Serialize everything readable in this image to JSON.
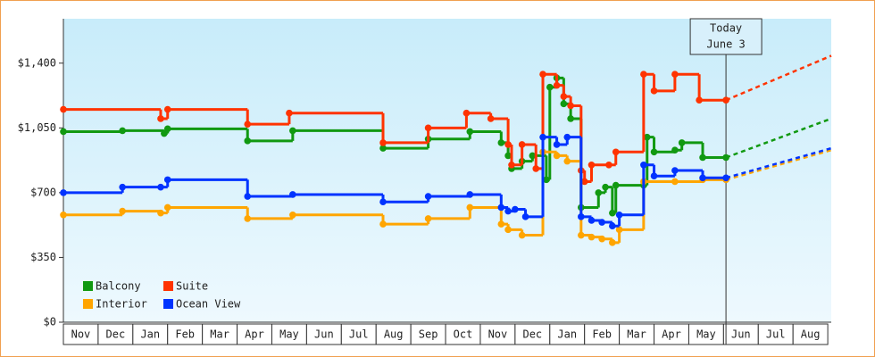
{
  "chart_data": {
    "type": "step-line",
    "months": [
      "Nov",
      "Dec",
      "Jan",
      "Feb",
      "Mar",
      "Apr",
      "May",
      "Jun",
      "Jul",
      "Aug",
      "Sep",
      "Oct",
      "Nov",
      "Dec",
      "Jan",
      "Feb",
      "Mar",
      "Apr",
      "May",
      "Jun",
      "Jul",
      "Aug"
    ],
    "xlim": [
      0,
      22.1
    ],
    "ylim": [
      0,
      1640
    ],
    "yticks": [
      {
        "value": 0,
        "label": "$0"
      },
      {
        "value": 350,
        "label": "$350"
      },
      {
        "value": 700,
        "label": "$700"
      },
      {
        "value": 1050,
        "label": "$1,050"
      },
      {
        "value": 1400,
        "label": "$1,400"
      }
    ],
    "today": {
      "x": 19.07,
      "label": "Today",
      "date": "June 3"
    },
    "forecast_x": [
      19.07,
      22.1
    ],
    "legend": "lower left",
    "series": [
      {
        "name": "Balcony",
        "color": "#119911",
        "x": [
          0,
          1.7,
          2.9,
          3.0,
          5.3,
          6.6,
          9.2,
          10.5,
          11.7,
          12.6,
          12.8,
          12.9,
          13.2,
          13.5,
          13.9,
          14.0,
          14.2,
          14.4,
          14.6,
          14.9,
          15.4,
          15.6,
          15.8,
          15.9,
          16.7,
          16.8,
          17.0,
          17.6,
          17.8,
          18.4,
          19.07
        ],
        "values": [
          1030,
          1035,
          1020,
          1045,
          980,
          1035,
          940,
          990,
          1030,
          970,
          900,
          830,
          870,
          900,
          770,
          1270,
          1320,
          1180,
          1100,
          620,
          700,
          730,
          590,
          740,
          740,
          1000,
          920,
          930,
          970,
          890,
          890
        ],
        "forecast": [
          890,
          1100
        ]
      },
      {
        "name": "Suite",
        "color": "#ff3300",
        "x": [
          0,
          2.8,
          3.0,
          5.3,
          6.5,
          9.2,
          10.5,
          11.6,
          12.3,
          12.8,
          12.9,
          13.2,
          13.6,
          13.8,
          14.2,
          14.4,
          14.6,
          14.9,
          15.0,
          15.2,
          15.7,
          15.9,
          16.7,
          17.0,
          17.6,
          18.3,
          19.07
        ],
        "values": [
          1150,
          1100,
          1150,
          1070,
          1130,
          970,
          1050,
          1130,
          1100,
          960,
          850,
          960,
          830,
          1340,
          1280,
          1220,
          1170,
          820,
          760,
          850,
          850,
          920,
          1340,
          1250,
          1340,
          1200,
          1200
        ],
        "forecast": [
          1200,
          1440
        ]
      },
      {
        "name": "Interior",
        "color": "#ffa500",
        "x": [
          0,
          1.7,
          2.8,
          3.0,
          5.3,
          6.6,
          9.2,
          10.5,
          11.7,
          12.6,
          12.8,
          13.2,
          13.8,
          14.2,
          14.5,
          14.9,
          15.2,
          15.5,
          15.8,
          16.0,
          16.7,
          17.6,
          18.4,
          19.07
        ],
        "values": [
          580,
          600,
          590,
          620,
          560,
          580,
          530,
          560,
          620,
          530,
          500,
          470,
          920,
          900,
          870,
          470,
          460,
          450,
          430,
          500,
          760,
          760,
          770,
          770
        ],
        "forecast": [
          770,
          930
        ]
      },
      {
        "name": "Ocean View",
        "color": "#0033ff",
        "x": [
          0,
          1.7,
          2.8,
          3.0,
          5.3,
          6.6,
          9.2,
          10.5,
          11.7,
          12.6,
          12.8,
          13.0,
          13.3,
          13.8,
          14.2,
          14.5,
          14.9,
          15.2,
          15.5,
          15.8,
          16.0,
          16.7,
          17.0,
          17.6,
          18.4,
          19.07
        ],
        "values": [
          700,
          730,
          730,
          770,
          680,
          690,
          650,
          680,
          690,
          620,
          600,
          610,
          570,
          1000,
          960,
          1000,
          570,
          550,
          540,
          520,
          580,
          850,
          790,
          820,
          780,
          780
        ],
        "forecast": [
          780,
          940
        ]
      }
    ]
  }
}
